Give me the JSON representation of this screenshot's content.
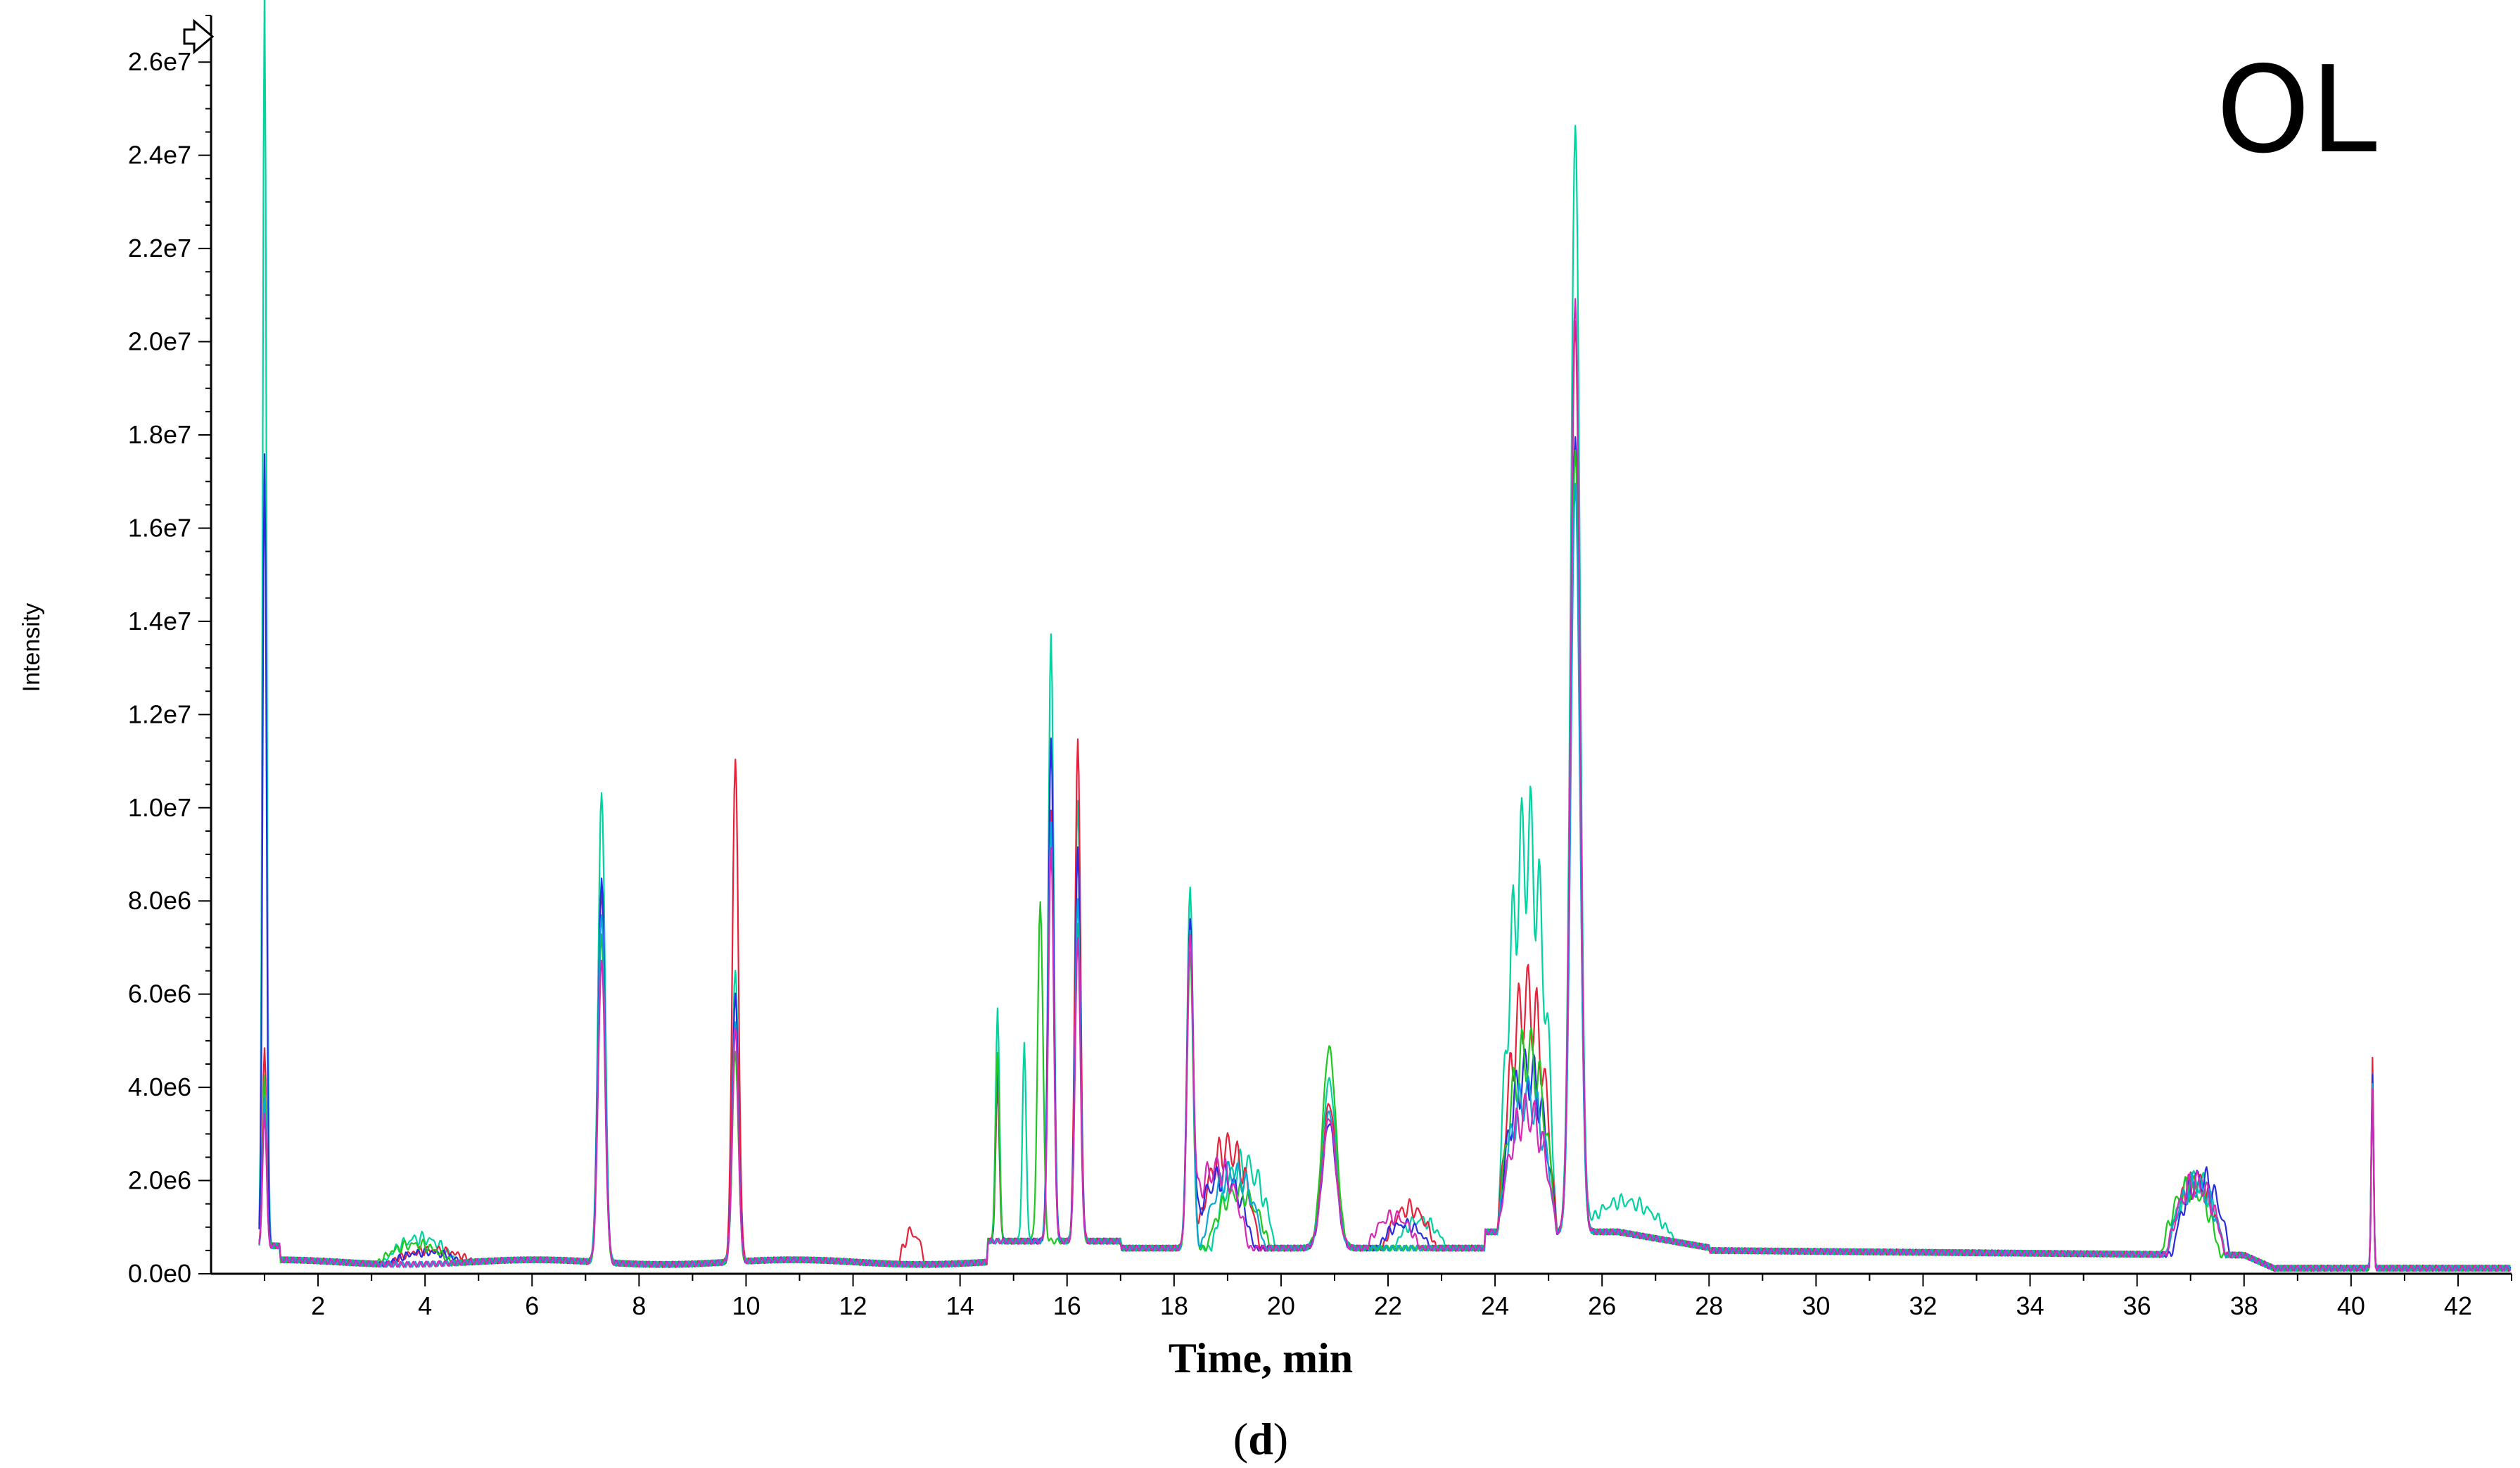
{
  "chart_data": {
    "type": "line",
    "title": "",
    "panel_label": "OL",
    "xlabel": "Time, min",
    "ylabel": "Intensity",
    "caption_open": "(",
    "caption_letter": "d",
    "caption_close": ")",
    "xlim": [
      0,
      43
    ],
    "ylim": [
      0,
      27000000
    ],
    "x_ticks": [
      2,
      4,
      6,
      8,
      10,
      12,
      14,
      16,
      18,
      20,
      22,
      24,
      26,
      28,
      30,
      32,
      34,
      36,
      38,
      40,
      42
    ],
    "x_tick_labels": [
      "2",
      "4",
      "6",
      "8",
      "10",
      "12",
      "14",
      "16",
      "18",
      "20",
      "22",
      "24",
      "26",
      "28",
      "30",
      "32",
      "34",
      "36",
      "38",
      "40",
      "42"
    ],
    "y_ticks": [
      0,
      2000000,
      4000000,
      6000000,
      8000000,
      10000000,
      12000000,
      14000000,
      16000000,
      18000000,
      20000000,
      22000000,
      24000000,
      26000000
    ],
    "y_tick_labels": [
      "0.0e0",
      "2.0e6",
      "4.0e6",
      "6.0e6",
      "8.0e6",
      "1.0e7",
      "1.2e7",
      "1.4e7",
      "1.6e7",
      "1.8e7",
      "2.0e7",
      "2.2e7",
      "2.4e7",
      "2.6e7"
    ],
    "grid": false,
    "legend": "none",
    "colors": [
      "#00d2a0",
      "#e8203a",
      "#2a2ae0",
      "#1ec81e",
      "#0aa6d6",
      "#d628b4"
    ],
    "series": [
      {
        "color": "#00d2a0",
        "peaks": [
          [
            1.0,
            27000000,
            0.05
          ],
          [
            7.3,
            10100000,
            0.09
          ],
          [
            9.8,
            6300000,
            0.08
          ],
          [
            14.7,
            5000000,
            0.05
          ],
          [
            15.2,
            4200000,
            0.05
          ],
          [
            15.7,
            13000000,
            0.07
          ],
          [
            16.2,
            9500000,
            0.07
          ],
          [
            18.3,
            7700000,
            0.08
          ],
          [
            20.9,
            3600000,
            0.18
          ],
          [
            25.5,
            23700000,
            0.12
          ],
          [
            40.4,
            4200000,
            0.03
          ]
        ],
        "humps": [
          [
            3.9,
            650000,
            0.7
          ],
          [
            19.3,
            2100000,
            0.6
          ],
          [
            22.6,
            700000,
            0.5
          ],
          [
            24.6,
            9700000,
            0.55
          ],
          [
            26.5,
            800000,
            0.9
          ],
          [
            37.1,
            1850000,
            0.55
          ]
        ]
      },
      {
        "color": "#e8203a",
        "peaks": [
          [
            1.0,
            4300000,
            0.05
          ],
          [
            7.3,
            8000000,
            0.09
          ],
          [
            9.8,
            10800000,
            0.08
          ],
          [
            14.7,
            3300000,
            0.05
          ],
          [
            15.7,
            9300000,
            0.07
          ],
          [
            16.2,
            10800000,
            0.07
          ],
          [
            18.3,
            7000000,
            0.08
          ],
          [
            20.9,
            3100000,
            0.18
          ],
          [
            25.5,
            19500000,
            0.12
          ],
          [
            40.4,
            4500000,
            0.03
          ]
        ],
        "humps": [
          [
            4.1,
            350000,
            0.8
          ],
          [
            13.1,
            800000,
            0.25
          ],
          [
            19.0,
            2500000,
            0.6
          ],
          [
            22.4,
            1000000,
            0.5
          ],
          [
            24.6,
            5800000,
            0.55
          ],
          [
            37.1,
            1800000,
            0.55
          ]
        ]
      },
      {
        "color": "#2a2ae0",
        "peaks": [
          [
            1.0,
            17000000,
            0.05
          ],
          [
            7.3,
            8200000,
            0.09
          ],
          [
            9.8,
            5700000,
            0.08
          ],
          [
            14.7,
            3800000,
            0.05
          ],
          [
            15.7,
            10800000,
            0.07
          ],
          [
            16.2,
            8400000,
            0.07
          ],
          [
            18.3,
            7100000,
            0.08
          ],
          [
            20.9,
            2700000,
            0.18
          ],
          [
            25.5,
            17100000,
            0.12
          ],
          [
            40.4,
            4100000,
            0.03
          ]
        ],
        "humps": [
          [
            4.0,
            300000,
            0.7
          ],
          [
            18.9,
            1800000,
            0.6
          ],
          [
            22.3,
            600000,
            0.5
          ],
          [
            24.6,
            4000000,
            0.55
          ],
          [
            37.2,
            1900000,
            0.55
          ]
        ]
      },
      {
        "color": "#1ec81e",
        "peaks": [
          [
            1.0,
            3600000,
            0.05
          ],
          [
            7.3,
            7000000,
            0.09
          ],
          [
            9.8,
            4500000,
            0.08
          ],
          [
            14.7,
            4100000,
            0.05
          ],
          [
            15.5,
            7300000,
            0.07
          ],
          [
            16.2,
            6800000,
            0.07
          ],
          [
            18.3,
            6300000,
            0.08
          ],
          [
            20.9,
            4300000,
            0.18
          ],
          [
            25.5,
            16800000,
            0.12
          ],
          [
            40.4,
            3900000,
            0.03
          ]
        ],
        "humps": [
          [
            3.8,
            500000,
            0.7
          ],
          [
            19.2,
            1400000,
            0.6
          ],
          [
            24.6,
            4500000,
            0.55
          ],
          [
            37.0,
            1700000,
            0.55
          ]
        ]
      },
      {
        "color": "#0aa6d6",
        "peaks": [
          [
            1.0,
            3200000,
            0.05
          ],
          [
            7.3,
            7500000,
            0.09
          ],
          [
            9.8,
            5200000,
            0.08
          ],
          [
            15.7,
            9000000,
            0.07
          ],
          [
            16.2,
            7400000,
            0.07
          ],
          [
            18.3,
            6800000,
            0.08
          ],
          [
            20.9,
            2900000,
            0.18
          ],
          [
            25.5,
            16000000,
            0.12
          ],
          [
            40.4,
            4000000,
            0.03
          ]
        ],
        "humps": [
          [
            19.1,
            1900000,
            0.6
          ],
          [
            24.6,
            3400000,
            0.55
          ],
          [
            37.1,
            1750000,
            0.55
          ]
        ]
      },
      {
        "color": "#d628b4",
        "peaks": [
          [
            1.0,
            2900000,
            0.05
          ],
          [
            7.3,
            6500000,
            0.09
          ],
          [
            9.8,
            5000000,
            0.08
          ],
          [
            15.7,
            8500000,
            0.07
          ],
          [
            16.2,
            6500000,
            0.07
          ],
          [
            18.3,
            6200000,
            0.08
          ],
          [
            20.9,
            2800000,
            0.18
          ],
          [
            25.5,
            20000000,
            0.12
          ],
          [
            40.4,
            3800000,
            0.03
          ]
        ],
        "humps": [
          [
            18.8,
            2000000,
            0.6
          ],
          [
            22.1,
            800000,
            0.5
          ],
          [
            24.6,
            3000000,
            0.55
          ],
          [
            37.1,
            1800000,
            0.55
          ]
        ]
      }
    ]
  }
}
